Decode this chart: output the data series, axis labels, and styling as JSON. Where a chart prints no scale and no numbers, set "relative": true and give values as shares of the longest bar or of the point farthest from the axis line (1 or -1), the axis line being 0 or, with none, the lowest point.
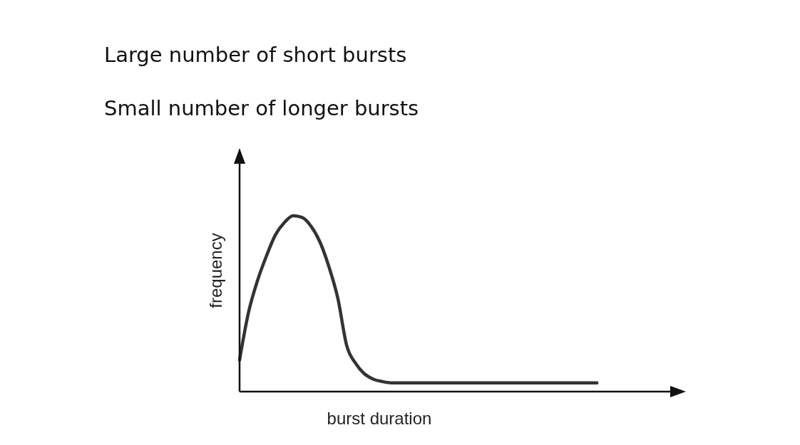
{
  "chart_data": {
    "type": "line",
    "relative": true,
    "title": "Large number of short bursts",
    "subtitle": "Small number of longer bursts",
    "xlabel": "burst duration",
    "ylabel": "frequency",
    "categories": [
      null,
      null,
      null,
      null,
      null,
      null,
      null,
      null,
      null,
      null,
      null,
      null,
      null,
      null,
      null,
      null,
      null,
      null,
      null,
      null,
      null,
      null,
      null,
      null,
      null,
      null,
      null,
      null,
      null,
      null,
      null,
      null,
      null,
      null,
      null,
      null,
      null,
      null,
      null,
      null,
      null,
      null,
      null,
      null,
      null,
      null,
      null,
      null,
      null,
      null
    ],
    "series": [
      {
        "color": "#333333",
        "values": [
          0.18,
          0.45,
          0.63,
          0.77,
          0.89,
          0.96,
          1.0,
          0.99,
          0.94,
          0.85,
          0.71,
          0.53,
          0.26,
          0.16,
          0.1,
          0.07,
          0.057,
          0.05,
          0.05,
          0.05,
          0.05,
          0.05,
          0.05,
          0.05,
          0.05,
          0.05,
          0.05,
          0.05,
          0.05,
          0.05,
          0.05,
          0.05,
          0.05,
          0.05,
          0.05,
          0.05,
          0.05,
          0.05,
          0.05,
          0.05,
          0.05,
          null,
          null,
          null,
          null,
          null,
          null,
          null,
          null,
          null
        ]
      }
    ],
    "grid": false,
    "legend": false,
    "marker": "none",
    "line_style": "solid"
  }
}
